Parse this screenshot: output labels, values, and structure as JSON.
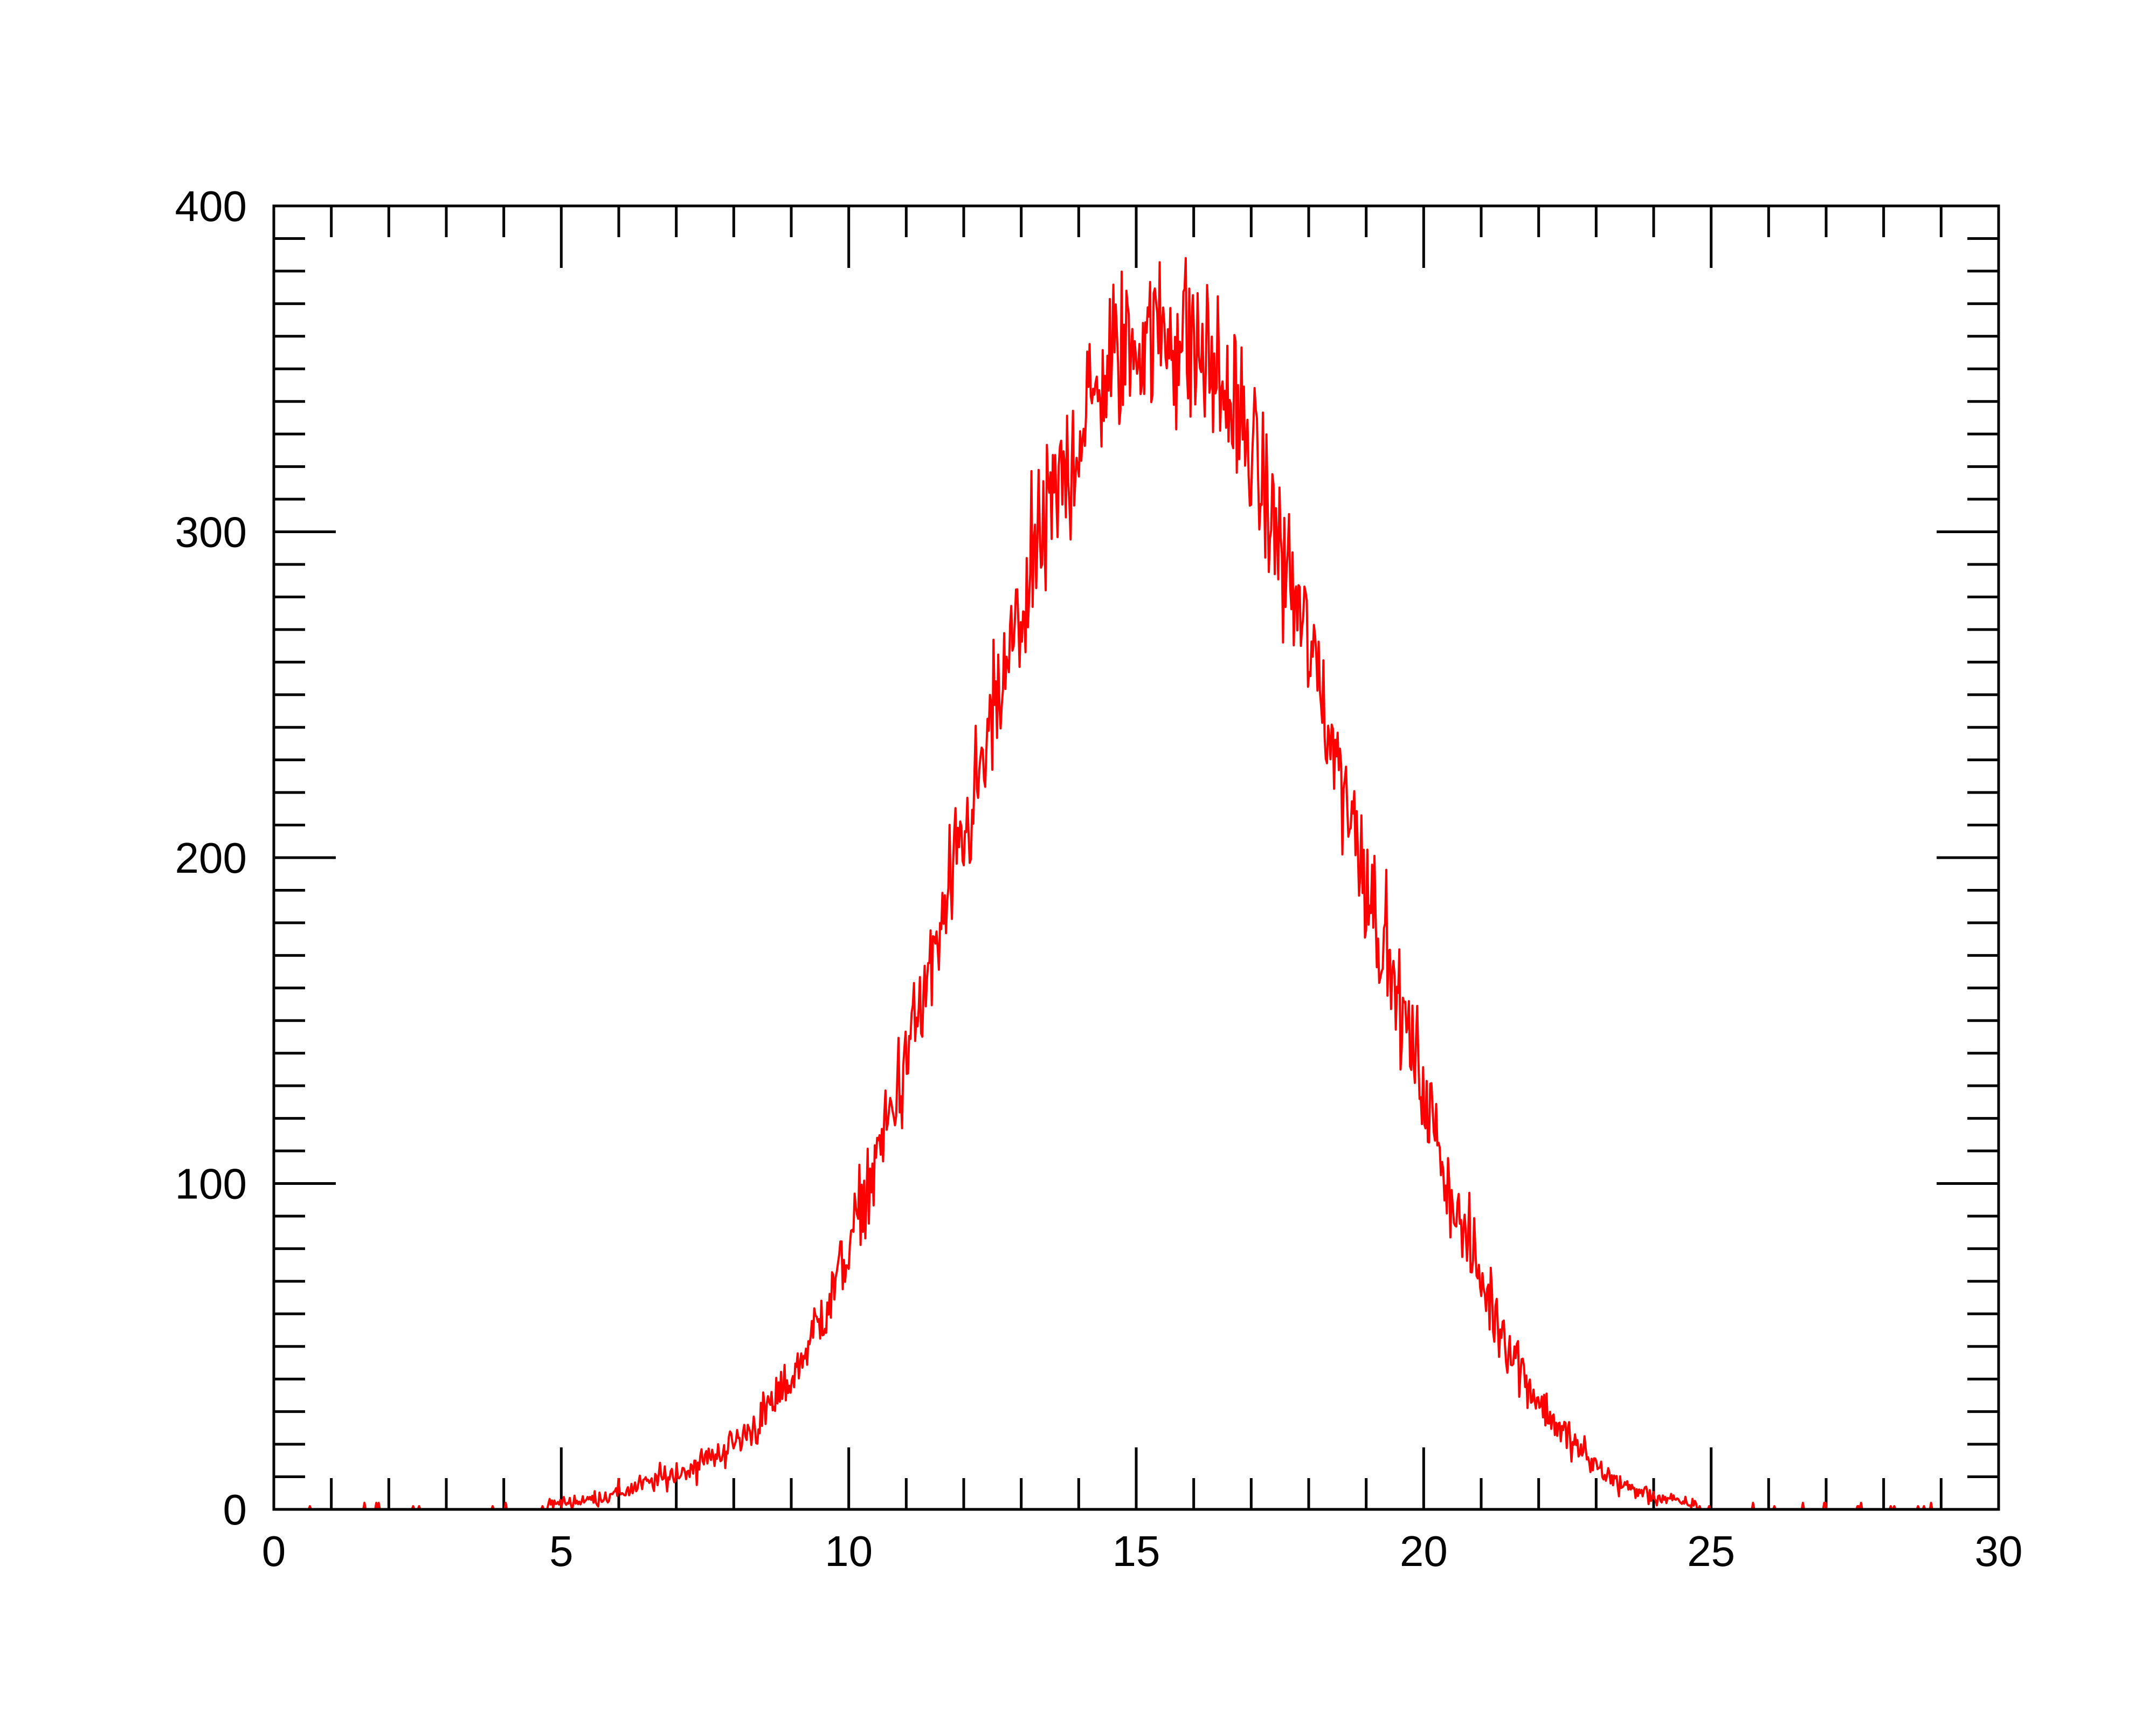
{
  "chart_data": {
    "type": "line",
    "title": "",
    "xlabel": "",
    "ylabel": "",
    "xlim": [
      0,
      30
    ],
    "ylim": [
      0,
      400
    ],
    "x_ticks": [
      {
        "value": 0,
        "label": "0"
      },
      {
        "value": 5,
        "label": "5"
      },
      {
        "value": 10,
        "label": "10"
      },
      {
        "value": 15,
        "label": "15"
      },
      {
        "value": 20,
        "label": "20"
      },
      {
        "value": 25,
        "label": "25"
      },
      {
        "value": 30,
        "label": "30"
      }
    ],
    "y_ticks": [
      {
        "value": 0,
        "label": "0"
      },
      {
        "value": 100,
        "label": "100"
      },
      {
        "value": 200,
        "label": "200"
      },
      {
        "value": 300,
        "label": "300"
      },
      {
        "value": 400,
        "label": "400"
      }
    ],
    "x_minor_step": 1,
    "y_minor_step": 10,
    "grid": false,
    "legend": "none",
    "series": [
      {
        "color": "#ff0000",
        "x": [
          0.0,
          0.5,
          1.0,
          1.5,
          2.0,
          2.5,
          3.0,
          3.5,
          4.0,
          4.5,
          5.0,
          5.5,
          6.0,
          6.5,
          7.0,
          7.5,
          8.0,
          8.5,
          9.0,
          9.5,
          10.0,
          10.5,
          11.0,
          11.5,
          12.0,
          12.5,
          13.0,
          13.5,
          14.0,
          14.5,
          15.0,
          15.5,
          16.0,
          16.5,
          17.0,
          17.5,
          18.0,
          18.5,
          19.0,
          19.5,
          20.0,
          20.5,
          21.0,
          21.5,
          22.0,
          22.5,
          23.0,
          23.5,
          24.0,
          24.5,
          25.0,
          25.5,
          26.0,
          26.5,
          27.0,
          27.5,
          28.0,
          28.5,
          29.0,
          29.5,
          30.0
        ],
        "y": [
          0,
          0,
          0,
          0,
          0,
          0,
          0,
          0,
          0,
          1,
          2,
          3,
          5,
          8,
          11,
          15,
          20,
          28,
          40,
          58,
          80,
          108,
          138,
          170,
          205,
          240,
          275,
          305,
          330,
          350,
          360,
          362,
          357,
          345,
          325,
          295,
          265,
          230,
          195,
          160,
          128,
          95,
          70,
          50,
          33,
          22,
          13,
          7,
          4,
          2,
          1,
          0,
          0,
          0,
          0,
          0,
          0,
          0,
          0,
          0,
          0
        ]
      }
    ]
  }
}
